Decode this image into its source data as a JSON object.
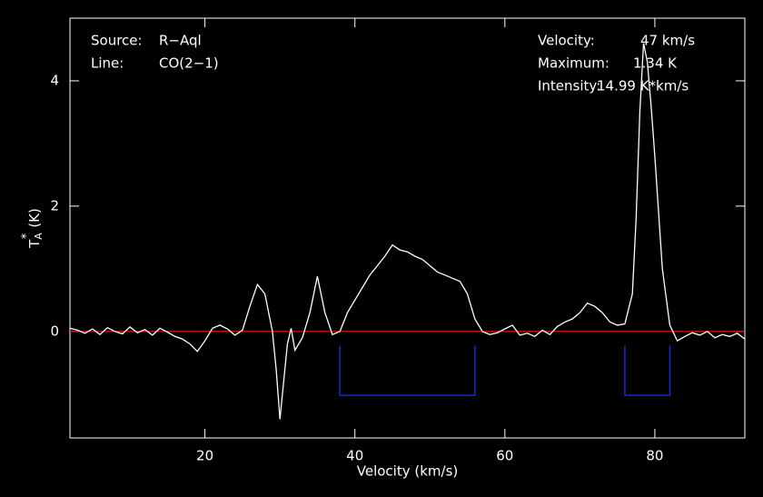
{
  "chart_data": {
    "type": "line",
    "x_label": "Velocity (km/s)",
    "y_label": {
      "base": "T",
      "sub": "A",
      "sup": "*",
      "unit": "(K)"
    },
    "annotations": [
      {
        "label": "Source:",
        "value": "R−Aql"
      },
      {
        "label": "Line:",
        "value": "CO(2−1)"
      },
      {
        "label": "Velocity:",
        "value": "47 km/s"
      },
      {
        "label": "Maximum:",
        "value": "1.34 K"
      },
      {
        "label": "Intensity:",
        "value": "14.99 K*km/s"
      }
    ],
    "xlim": [
      2,
      92
    ],
    "ylim": [
      -1.7,
      5.0
    ],
    "xticks": [
      20,
      40,
      60,
      80
    ],
    "yticks": [
      0,
      2,
      4
    ],
    "baseline": {
      "value": 0,
      "color": "#d01010"
    },
    "windows": {
      "color": "#1030e0",
      "top": -0.23,
      "bottom": -1.02,
      "ranges": [
        [
          38,
          56
        ],
        [
          76,
          82
        ]
      ]
    },
    "series": [
      {
        "name": "spectrum",
        "color": "#ffffff",
        "x": [
          2,
          3,
          4,
          5,
          6,
          7,
          8,
          9,
          10,
          11,
          12,
          13,
          14,
          15,
          16,
          17,
          18,
          19,
          20,
          21,
          22,
          23,
          24,
          25,
          26,
          27,
          28,
          29,
          29.5,
          30,
          30.5,
          31,
          31.5,
          32,
          33,
          34,
          35,
          36,
          37,
          38,
          39,
          40,
          41,
          42,
          43,
          44,
          45,
          46,
          47,
          48,
          49,
          50,
          51,
          52,
          53,
          54,
          55,
          56,
          57,
          58,
          59,
          60,
          61,
          62,
          63,
          64,
          65,
          66,
          67,
          68,
          69,
          70,
          71,
          72,
          73,
          74,
          75,
          76,
          77,
          77.5,
          78,
          78.5,
          79,
          79.5,
          80,
          81,
          82,
          83,
          84,
          85,
          86,
          87,
          88,
          89,
          90,
          91,
          92
        ],
        "values": [
          0.05,
          0.02,
          -0.03,
          0.04,
          -0.05,
          0.06,
          0.0,
          -0.04,
          0.07,
          -0.02,
          0.03,
          -0.06,
          0.05,
          -0.01,
          -0.08,
          -0.12,
          -0.2,
          -0.32,
          -0.15,
          0.05,
          0.1,
          0.04,
          -0.06,
          0.02,
          0.4,
          0.75,
          0.6,
          0.0,
          -0.6,
          -1.4,
          -0.8,
          -0.2,
          0.05,
          -0.3,
          -0.1,
          0.3,
          0.88,
          0.3,
          -0.05,
          0.0,
          0.3,
          0.5,
          0.7,
          0.9,
          1.05,
          1.2,
          1.38,
          1.3,
          1.27,
          1.2,
          1.15,
          1.05,
          0.95,
          0.9,
          0.85,
          0.8,
          0.6,
          0.2,
          0.0,
          -0.05,
          -0.02,
          0.04,
          0.1,
          -0.06,
          -0.03,
          -0.08,
          0.02,
          -0.05,
          0.08,
          0.15,
          0.2,
          0.3,
          0.45,
          0.4,
          0.3,
          0.15,
          0.1,
          0.12,
          0.6,
          1.8,
          3.5,
          4.6,
          4.3,
          3.6,
          2.8,
          1.0,
          0.1,
          -0.15,
          -0.08,
          -0.02,
          -0.06,
          0.0,
          -0.1,
          -0.05,
          -0.08,
          -0.03,
          -0.12
        ]
      }
    ]
  }
}
